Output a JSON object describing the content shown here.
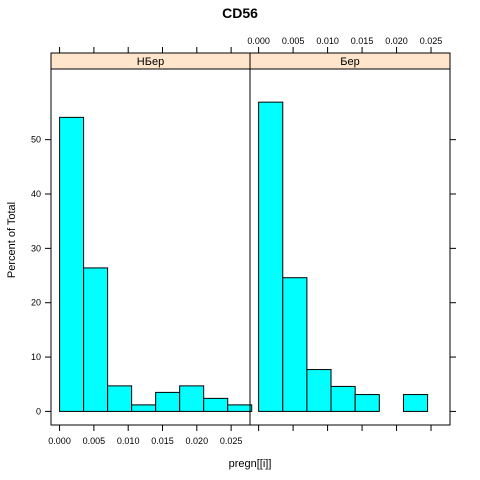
{
  "chart_data": {
    "type": "bar",
    "title": "CD56",
    "xlabel": "pregn[[i]]",
    "ylabel": "Percent of Total",
    "xlim": [
      -0.00125,
      0.02775
    ],
    "ylim": [
      -2.5,
      63
    ],
    "xticks": [
      "0.000",
      "0.005",
      "0.010",
      "0.015",
      "0.020",
      "0.025"
    ],
    "xtick_values": [
      0.0,
      0.005,
      0.01,
      0.015,
      0.02,
      0.025
    ],
    "yticks": [
      "0",
      "10",
      "20",
      "30",
      "40",
      "50"
    ],
    "ytick_values": [
      0,
      10,
      20,
      30,
      40,
      50
    ],
    "bar_color": "#00FFFF",
    "strip_color": "#FFE5CC",
    "panels": [
      {
        "name": "НБер",
        "bins": [
          {
            "x0": 0.0,
            "x1": 0.0035,
            "value": 54.1
          },
          {
            "x0": 0.0035,
            "x1": 0.007,
            "value": 26.4
          },
          {
            "x0": 0.007,
            "x1": 0.0105,
            "value": 4.7
          },
          {
            "x0": 0.0105,
            "x1": 0.014,
            "value": 1.2
          },
          {
            "x0": 0.014,
            "x1": 0.0175,
            "value": 3.5
          },
          {
            "x0": 0.0175,
            "x1": 0.021,
            "value": 4.7
          },
          {
            "x0": 0.021,
            "x1": 0.0245,
            "value": 2.4
          },
          {
            "x0": 0.0245,
            "x1": 0.028,
            "value": 1.2
          }
        ]
      },
      {
        "name": "Бер",
        "bins": [
          {
            "x0": 0.0,
            "x1": 0.0035,
            "value": 56.9
          },
          {
            "x0": 0.0035,
            "x1": 0.007,
            "value": 24.6
          },
          {
            "x0": 0.007,
            "x1": 0.0105,
            "value": 7.7
          },
          {
            "x0": 0.0105,
            "x1": 0.014,
            "value": 4.6
          },
          {
            "x0": 0.014,
            "x1": 0.0175,
            "value": 3.1
          },
          {
            "x0": 0.0175,
            "x1": 0.021,
            "value": 0.0
          },
          {
            "x0": 0.021,
            "x1": 0.0245,
            "value": 3.1
          },
          {
            "x0": 0.0245,
            "x1": 0.028,
            "value": 0.0
          }
        ]
      }
    ]
  }
}
